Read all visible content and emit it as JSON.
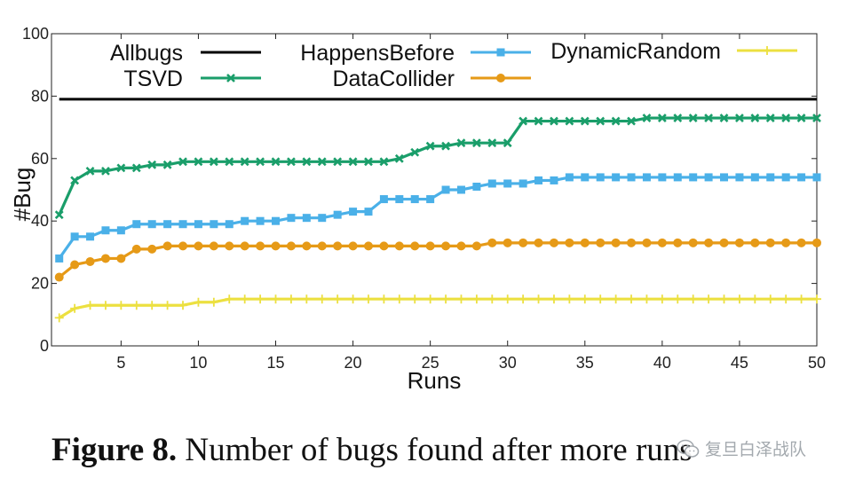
{
  "chart_data": {
    "type": "line",
    "xlabel": "Runs",
    "ylabel": "#Bug",
    "xlim": [
      0.5,
      50
    ],
    "ylim": [
      0,
      100
    ],
    "xticks": [
      5,
      10,
      15,
      20,
      25,
      30,
      35,
      40,
      45,
      50
    ],
    "yticks": [
      0,
      20,
      40,
      60,
      80,
      100
    ],
    "grid": false,
    "legend": "top",
    "x": [
      1,
      2,
      3,
      4,
      5,
      6,
      7,
      8,
      9,
      10,
      11,
      12,
      13,
      14,
      15,
      16,
      17,
      18,
      19,
      20,
      21,
      22,
      23,
      24,
      25,
      26,
      27,
      28,
      29,
      30,
      31,
      32,
      33,
      34,
      35,
      36,
      37,
      38,
      39,
      40,
      41,
      42,
      43,
      44,
      45,
      46,
      47,
      48,
      49,
      50
    ],
    "series": [
      {
        "name": "Allbugs",
        "color": "#000000",
        "marker": "none",
        "values": [
          79,
          79,
          79,
          79,
          79,
          79,
          79,
          79,
          79,
          79,
          79,
          79,
          79,
          79,
          79,
          79,
          79,
          79,
          79,
          79,
          79,
          79,
          79,
          79,
          79,
          79,
          79,
          79,
          79,
          79,
          79,
          79,
          79,
          79,
          79,
          79,
          79,
          79,
          79,
          79,
          79,
          79,
          79,
          79,
          79,
          79,
          79,
          79,
          79,
          79
        ]
      },
      {
        "name": "TSVD",
        "color": "#1a9e6a",
        "marker": "x",
        "values": [
          42,
          53,
          56,
          56,
          57,
          57,
          58,
          58,
          59,
          59,
          59,
          59,
          59,
          59,
          59,
          59,
          59,
          59,
          59,
          59,
          59,
          59,
          60,
          62,
          64,
          64,
          65,
          65,
          65,
          65,
          72,
          72,
          72,
          72,
          72,
          72,
          72,
          72,
          73,
          73,
          73,
          73,
          73,
          73,
          73,
          73,
          73,
          73,
          73,
          73
        ]
      },
      {
        "name": "HappensBefore",
        "color": "#4ab0e8",
        "marker": "square",
        "values": [
          28,
          35,
          35,
          37,
          37,
          39,
          39,
          39,
          39,
          39,
          39,
          39,
          40,
          40,
          40,
          41,
          41,
          41,
          42,
          43,
          43,
          47,
          47,
          47,
          47,
          50,
          50,
          51,
          52,
          52,
          52,
          53,
          53,
          54,
          54,
          54,
          54,
          54,
          54,
          54,
          54,
          54,
          54,
          54,
          54,
          54,
          54,
          54,
          54,
          54
        ]
      },
      {
        "name": "DataCollider",
        "color": "#e69a17",
        "marker": "circle",
        "values": [
          22,
          26,
          27,
          28,
          28,
          31,
          31,
          32,
          32,
          32,
          32,
          32,
          32,
          32,
          32,
          32,
          32,
          32,
          32,
          32,
          32,
          32,
          32,
          32,
          32,
          32,
          32,
          32,
          33,
          33,
          33,
          33,
          33,
          33,
          33,
          33,
          33,
          33,
          33,
          33,
          33,
          33,
          33,
          33,
          33,
          33,
          33,
          33,
          33,
          33
        ]
      },
      {
        "name": "DynamicRandom",
        "color": "#ece040",
        "marker": "plus",
        "values": [
          9,
          12,
          13,
          13,
          13,
          13,
          13,
          13,
          13,
          14,
          14,
          15,
          15,
          15,
          15,
          15,
          15,
          15,
          15,
          15,
          15,
          15,
          15,
          15,
          15,
          15,
          15,
          15,
          15,
          15,
          15,
          15,
          15,
          15,
          15,
          15,
          15,
          15,
          15,
          15,
          15,
          15,
          15,
          15,
          15,
          15,
          15,
          15,
          15,
          15
        ]
      }
    ]
  },
  "caption": {
    "label": "Figure 8.",
    "text": " Number of bugs found after more runs"
  },
  "watermark": {
    "text": "复旦白泽战队",
    "icon": "wechat-icon"
  }
}
